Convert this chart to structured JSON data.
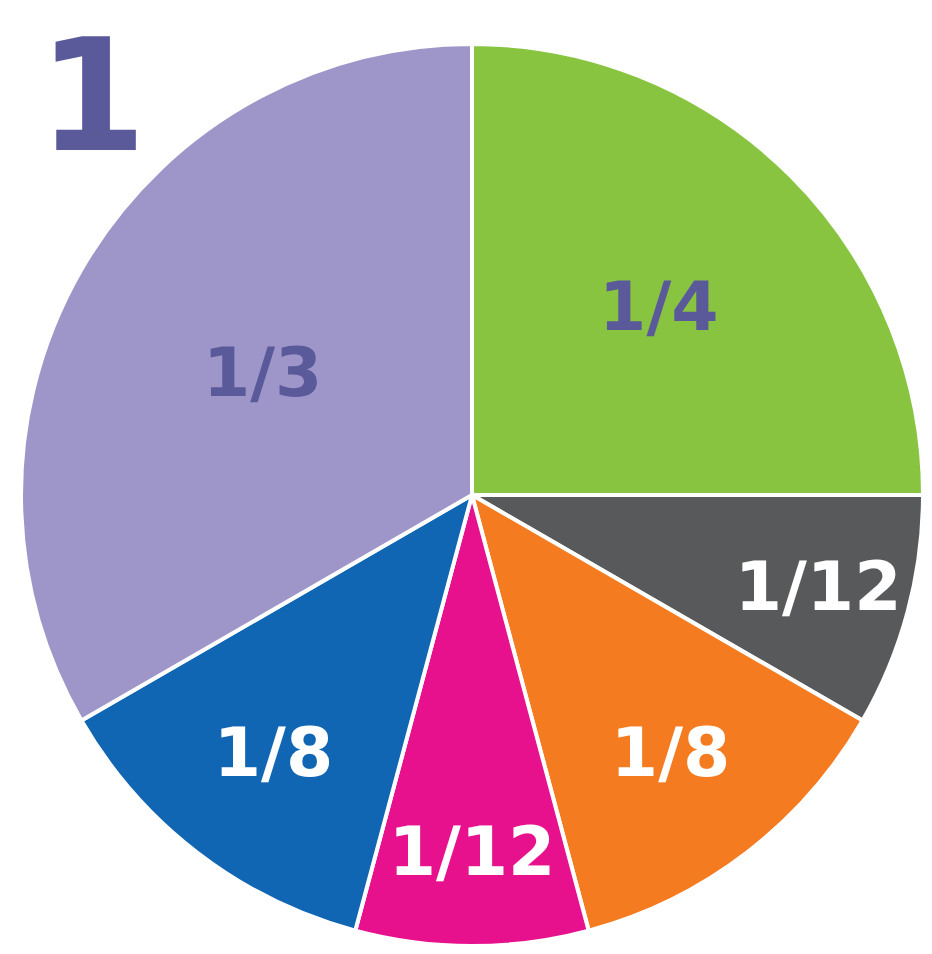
{
  "chart_data": {
    "type": "pie",
    "title": "1",
    "categories": [
      null,
      null,
      null,
      null,
      null,
      null
    ],
    "values": [
      0.25,
      0.0833,
      0.125,
      0.0833,
      0.125,
      0.3333
    ],
    "colors": [
      "#88c440",
      "#58595b",
      "#f47b20",
      "#e8118d",
      "#1166b3",
      "#9e96c9"
    ],
    "value_labels": [
      "1/4",
      "1/12",
      "1/8",
      "1/12",
      "1/8",
      "1/3"
    ]
  }
}
